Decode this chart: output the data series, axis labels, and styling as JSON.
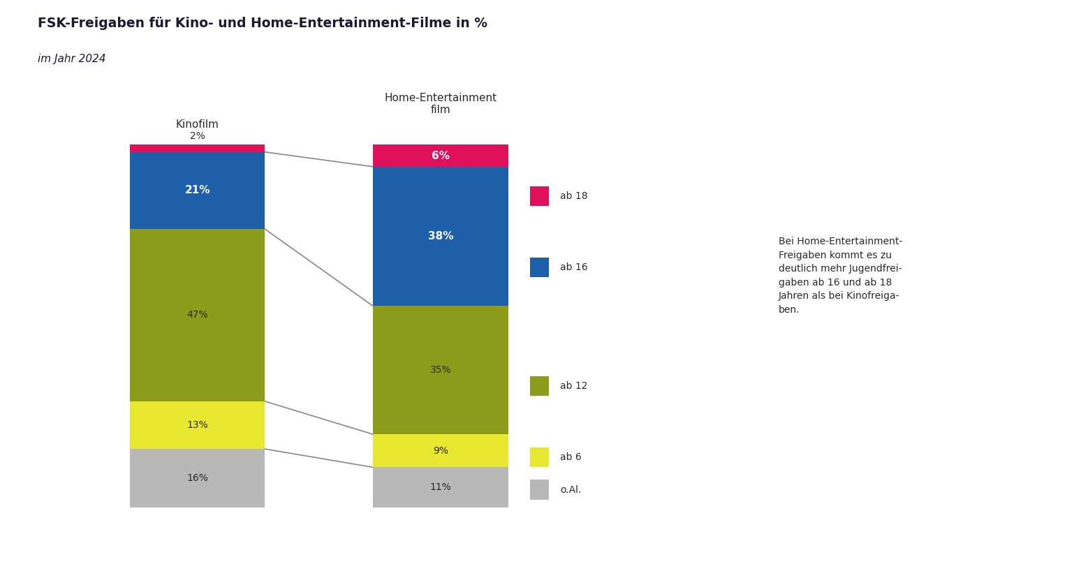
{
  "title": "FSK-Freigaben für Kino- und Home-Entertainment-Filme in %",
  "subtitle": "im Jahr 2024",
  "col_labels": [
    "Kinofilm",
    "Home-Entertainment\nfilm"
  ],
  "segment_order": [
    "o.Al.",
    "ab 6",
    "ab 12",
    "ab 16",
    "ab 18"
  ],
  "kino_vals": [
    16,
    13,
    47,
    21,
    2
  ],
  "home_vals": [
    11,
    9,
    35,
    38,
    6
  ],
  "colors": {
    "o.Al.": "#b8b8b8",
    "ab 6": "#e8e830",
    "ab 12": "#8b9c1a",
    "ab 16": "#1e5faa",
    "ab 18": "#e0105a"
  },
  "legend_order": [
    "ab 18",
    "ab 16",
    "ab 12",
    "ab 6",
    "o.Al."
  ],
  "kino_label_inside": [
    "ab 16",
    "ab 12",
    "ab 6",
    "o.Al."
  ],
  "kino_label_above": [
    "ab 18"
  ],
  "home_label_inside": [
    "ab 18",
    "ab 16",
    "ab 12",
    "ab 6",
    "o.Al."
  ],
  "white_text_segs": [
    "ab 16",
    "ab 18"
  ],
  "annotation_lines": [
    "Bei Home-Entertainment-",
    "Freigaben kommt es zu",
    "deutlich mehr Jugendfrei-",
    "gaben ab 16 und ab 18",
    "Jahren als bei Kinofreiga-",
    "ben."
  ],
  "bg_color": "#ffffff",
  "text_color": "#2a2a2a",
  "line_color": "#999999"
}
